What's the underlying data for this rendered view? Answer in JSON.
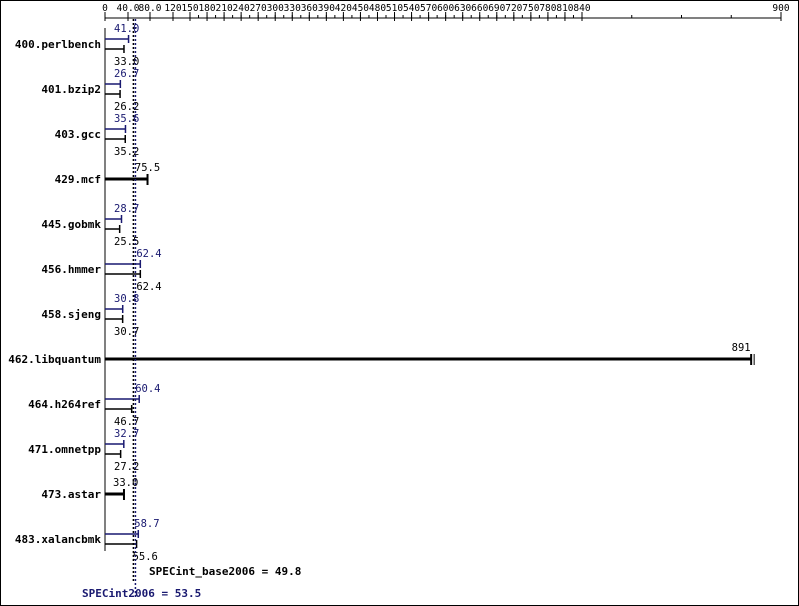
{
  "chart_data": {
    "type": "bar",
    "orientation": "horizontal",
    "xlim": [
      0,
      900
    ],
    "tick_labels": [
      "0",
      "40.0",
      "80.0",
      "120",
      "150",
      "180",
      "210",
      "240",
      "270",
      "300",
      "330",
      "360",
      "390",
      "420",
      "450",
      "480",
      "510",
      "540",
      "570",
      "600",
      "630",
      "660",
      "690",
      "720",
      "750",
      "780",
      "810",
      "840",
      "900"
    ],
    "tick_values": [
      0,
      40,
      80,
      120,
      150,
      180,
      210,
      240,
      270,
      300,
      330,
      360,
      390,
      420,
      450,
      480,
      510,
      540,
      570,
      600,
      630,
      660,
      690,
      720,
      750,
      780,
      810,
      840,
      900
    ],
    "categories": [
      "400.perlbench",
      "401.bzip2",
      "403.gcc",
      "429.mcf",
      "445.gobmk",
      "456.hmmer",
      "458.sjeng",
      "462.libquantum",
      "464.h264ref",
      "471.omnetpp",
      "473.astar",
      "483.xalancbmk"
    ],
    "series": [
      {
        "name": "SPECint2006",
        "color": "#191970",
        "values": [
          41.0,
          26.7,
          35.6,
          null,
          28.7,
          62.4,
          30.8,
          null,
          60.4,
          32.7,
          null,
          58.7
        ],
        "labels": [
          "41.0",
          "26.7",
          "35.6",
          null,
          "28.7",
          "62.4",
          "30.8",
          null,
          "60.4",
          "32.7",
          null,
          "58.7"
        ]
      },
      {
        "name": "SPECint_base2006",
        "color": "#000000",
        "values": [
          33.0,
          26.2,
          35.2,
          75.5,
          25.5,
          62.4,
          30.7,
          891,
          46.7,
          27.2,
          33.0,
          55.6
        ],
        "labels": [
          "33.0",
          "26.2",
          "35.2",
          "75.5",
          "25.5",
          "62.4",
          "30.7",
          "891",
          "46.7",
          "27.2",
          "33.0",
          "55.6"
        ]
      }
    ],
    "reference_lines": [
      {
        "label": "SPECint_base2006 = 49.8",
        "value": 49.8,
        "color": "#000000"
      },
      {
        "label": "SPECint2006 = 53.5",
        "value": 53.5,
        "color": "#191970"
      }
    ]
  }
}
